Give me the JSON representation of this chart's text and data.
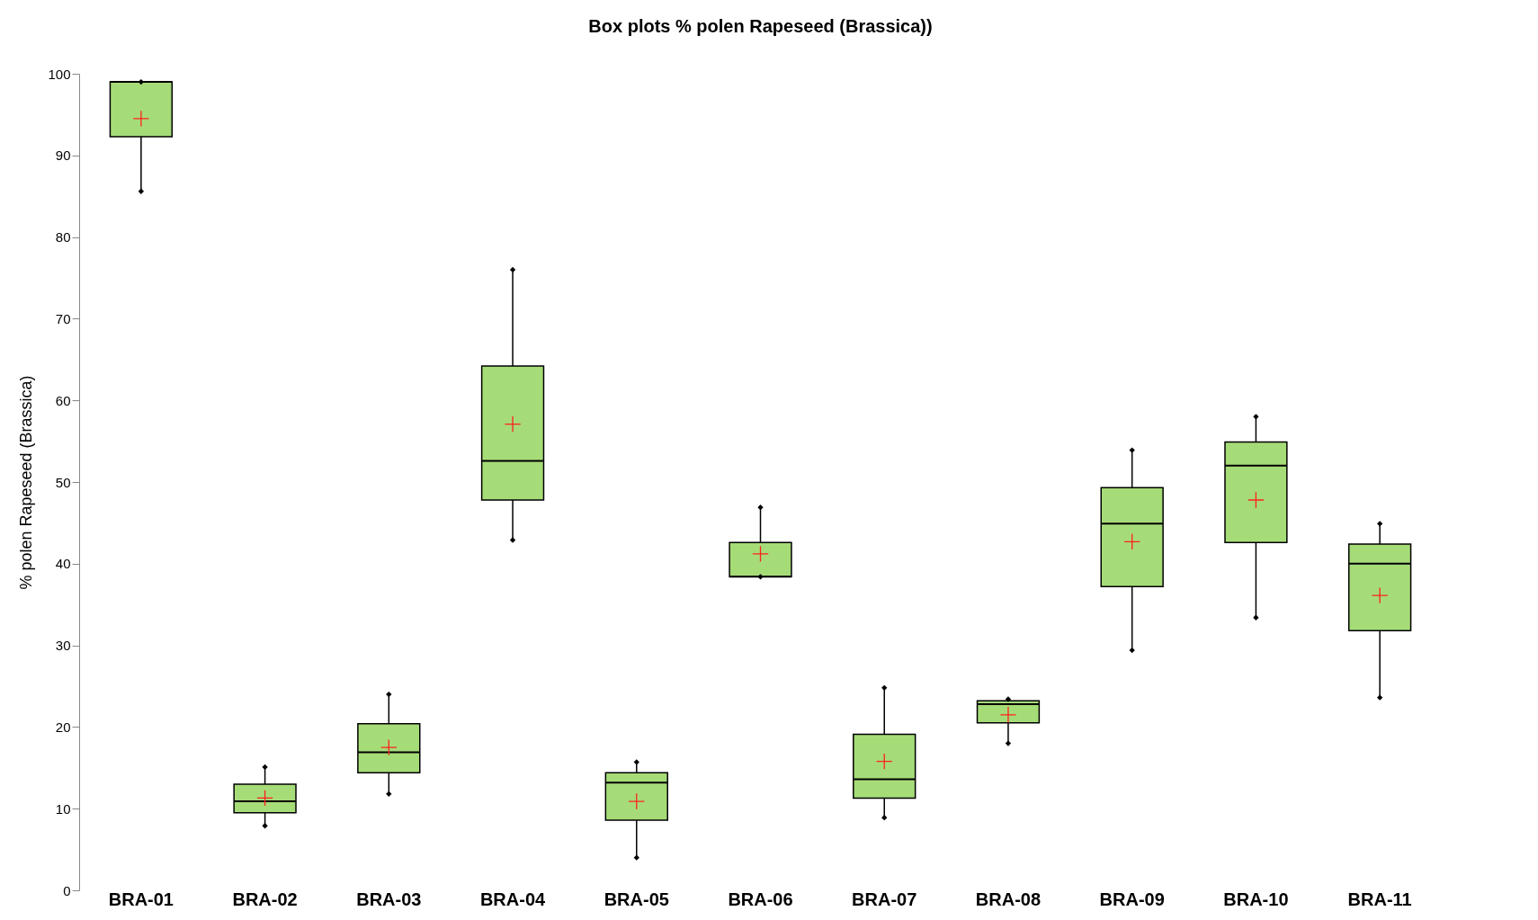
{
  "chart_data": {
    "type": "box",
    "title": "Box plots % polen Rapeseed (Brassica))",
    "ylabel": "% polen Rapeseed (Brassica)",
    "color": "#a6dc78",
    "marker": "diamond",
    "categories": [
      "BRA-01",
      "BRA-02",
      "BRA-03",
      "BRA-04",
      "BRA-05",
      "BRA-06",
      "BRA-07",
      "BRA-08",
      "BRA-09",
      "BRA-10",
      "BRA-11"
    ],
    "boxes": [
      {
        "low": 85.6,
        "q1": 92.3,
        "median": 99,
        "q3": 99,
        "high": 99,
        "mean": 94.5
      },
      {
        "low": 7.9,
        "q1": 9.5,
        "median": 10.9,
        "q3": 13.0,
        "high": 15.1,
        "mean": 11.3
      },
      {
        "low": 11.8,
        "q1": 14.4,
        "median": 16.9,
        "q3": 20.4,
        "high": 24.0,
        "mean": 17.5
      },
      {
        "low": 42.9,
        "q1": 47.8,
        "median": 52.6,
        "q3": 64.2,
        "high": 76.0,
        "mean": 57.1
      },
      {
        "low": 4.0,
        "q1": 8.6,
        "median": 13.2,
        "q3": 14.4,
        "high": 15.7,
        "mean": 10.9
      },
      {
        "low": 38.4,
        "q1": 38.4,
        "median": 38.4,
        "q3": 42.6,
        "high": 46.9,
        "mean": 41.2
      },
      {
        "low": 8.9,
        "q1": 11.3,
        "median": 13.6,
        "q3": 19.1,
        "high": 24.8,
        "mean": 15.8
      },
      {
        "low": 18.0,
        "q1": 20.5,
        "median": 22.8,
        "q3": 23.2,
        "high": 23.4,
        "mean": 21.5
      },
      {
        "low": 29.4,
        "q1": 37.2,
        "median": 44.9,
        "q3": 49.3,
        "high": 53.9,
        "mean": 42.7
      },
      {
        "low": 33.4,
        "q1": 42.6,
        "median": 52.0,
        "q3": 54.9,
        "high": 58.0,
        "mean": 47.8
      },
      {
        "low": 23.6,
        "q1": 31.8,
        "median": 40.0,
        "q3": 42.4,
        "high": 44.9,
        "mean": 36.1
      }
    ],
    "series": [
      {
        "type": "scatter",
        "color": "#000000",
        "x": [
          "BRA-01",
          "BRA-02",
          "BRA-03",
          "BRA-04",
          "BRA-05",
          "BRA-06",
          "BRA-07",
          "BRA-08",
          "BRA-09",
          "BRA-10",
          "BRA-11"
        ],
        "values": [
          99,
          15.1,
          24.0,
          76.0,
          15.7,
          46.9,
          24.8,
          23.4,
          53.9,
          58.0,
          44.9
        ]
      },
      {
        "type": "scatter",
        "color": "#000000",
        "x": [
          "BRA-01",
          "BRA-02",
          "BRA-03",
          "BRA-04",
          "BRA-05",
          "BRA-06",
          "BRA-07",
          "BRA-08",
          "BRA-09",
          "BRA-10",
          "BRA-11"
        ],
        "values": [
          85.6,
          7.9,
          11.8,
          42.9,
          4.0,
          38.4,
          8.9,
          18.0,
          29.4,
          33.4,
          23.6
        ]
      }
    ],
    "ylim": [
      0,
      100
    ],
    "yticks": [
      0,
      10,
      20,
      30,
      40,
      50,
      60,
      70,
      80,
      90,
      100
    ]
  }
}
